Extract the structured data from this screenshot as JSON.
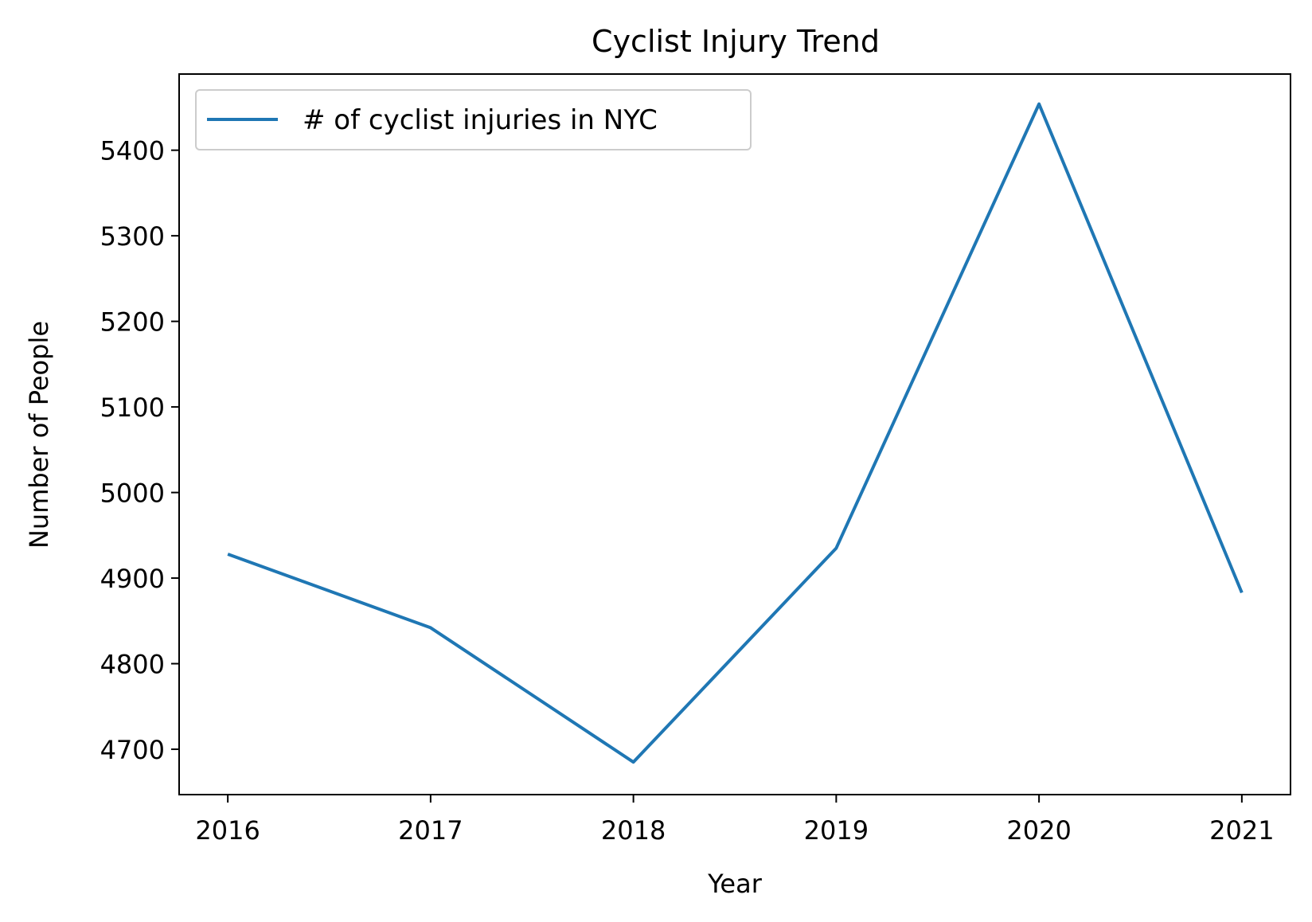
{
  "chart_data": {
    "type": "line",
    "title": "Cyclist Injury Trend",
    "xlabel": "Year",
    "ylabel": "Number of People",
    "x": [
      2016,
      2017,
      2018,
      2019,
      2020,
      2021
    ],
    "series": [
      {
        "name": "# of cyclist injuries in NYC",
        "color": "#1f77b4",
        "values": [
          4928,
          4842,
          4685,
          4935,
          5454,
          4883
        ]
      }
    ],
    "xlim": [
      2015.76,
      2021.24
    ],
    "ylim": [
      4647,
      5489
    ],
    "xticks": [
      "2016",
      "2017",
      "2018",
      "2019",
      "2020",
      "2021"
    ],
    "yticks": [
      4700,
      4800,
      4900,
      5000,
      5100,
      5200,
      5300,
      5400
    ],
    "grid": false,
    "legend_position": "upper left"
  }
}
